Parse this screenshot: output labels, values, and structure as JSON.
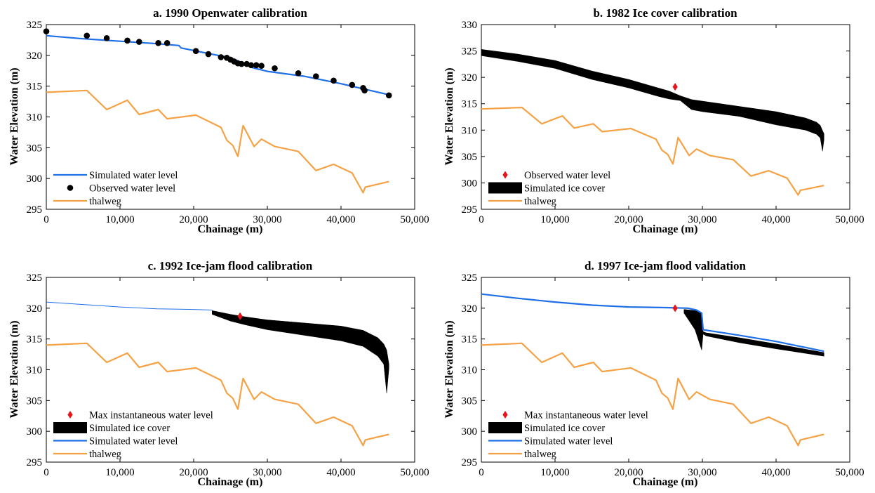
{
  "colors": {
    "simulated_water": "#1f6fe6",
    "thalweg": "#f4a245",
    "observed_point": "#000000",
    "max_point": "#e8141c",
    "ice_cover": "#000000"
  },
  "chart_data": [
    {
      "type": "line",
      "title": "a. 1990 Openwater calibration",
      "xlabel": "Chainage (m)",
      "ylabel": "Water Elevation (m)",
      "xlim": [
        0,
        50000
      ],
      "ylim": [
        295,
        325
      ],
      "x_ticks": [
        0,
        10000,
        20000,
        30000,
        40000,
        50000
      ],
      "x_tick_labels": [
        "0",
        "10,000",
        "20,000",
        "30,000",
        "40,000",
        "50,000"
      ],
      "y_ticks": [
        295,
        300,
        305,
        310,
        315,
        320,
        325
      ],
      "y_tick_labels": [
        "295",
        "300",
        "305",
        "310",
        "315",
        "320",
        "325"
      ],
      "legend_position": "bottom-left",
      "legend": [
        {
          "label": "Simulated water level",
          "kind": "line",
          "series": "water"
        },
        {
          "label": "Observed water level",
          "kind": "dot",
          "series": "observed"
        },
        {
          "label": "thalweg",
          "kind": "line",
          "series": "thalweg"
        }
      ],
      "series": [
        {
          "name": "Simulated water level",
          "kind": "line",
          "color_key": "simulated_water",
          "x": [
            0,
            5000,
            10000,
            15000,
            18000,
            18300,
            22000,
            25000,
            26000,
            27000,
            28000,
            30000,
            35000,
            40000,
            46500
          ],
          "y": [
            323.2,
            322.7,
            322.3,
            321.9,
            321.6,
            321.2,
            320.3,
            319.6,
            319.1,
            318.6,
            318.0,
            317.4,
            316.6,
            315.4,
            313.6
          ]
        },
        {
          "name": "Observed water level",
          "kind": "scatter",
          "color_key": "observed_point",
          "x": [
            0,
            5500,
            8200,
            11000,
            12600,
            15200,
            16400,
            20300,
            22000,
            23700,
            24500,
            25000,
            25500,
            26000,
            26500,
            27200,
            27800,
            28500,
            29200,
            31000,
            34200,
            36600,
            39000,
            41500,
            43000,
            43200,
            46500
          ],
          "y": [
            323.9,
            323.2,
            322.8,
            322.4,
            322.2,
            322.0,
            322.0,
            320.7,
            320.2,
            319.7,
            319.6,
            319.3,
            319.0,
            318.7,
            318.6,
            318.6,
            318.4,
            318.4,
            318.3,
            317.9,
            317.1,
            316.6,
            315.9,
            315.2,
            314.7,
            314.3,
            313.5
          ]
        },
        {
          "name": "thalweg",
          "kind": "line",
          "color_key": "thalweg",
          "x": [
            0,
            5500,
            8200,
            11000,
            12600,
            15200,
            16400,
            20300,
            23700,
            24500,
            25300,
            26000,
            26700,
            28200,
            29200,
            31000,
            34200,
            36600,
            39000,
            41500,
            43000,
            43300,
            46500
          ],
          "y": [
            314.0,
            314.3,
            311.2,
            312.7,
            310.4,
            311.2,
            309.7,
            310.3,
            308.3,
            306.2,
            305.4,
            303.6,
            308.6,
            305.2,
            306.4,
            305.2,
            304.4,
            301.3,
            302.3,
            300.9,
            297.7,
            298.6,
            299.5
          ]
        }
      ]
    },
    {
      "type": "area",
      "title": "b. 1982 Ice cover calibration",
      "xlabel": "Chainage (m)",
      "ylabel": "Water Elevation (m)",
      "xlim": [
        0,
        50000
      ],
      "ylim": [
        295,
        330
      ],
      "x_ticks": [
        0,
        10000,
        20000,
        30000,
        40000,
        50000
      ],
      "x_tick_labels": [
        "0",
        "10,000",
        "20,000",
        "30,000",
        "40,000",
        "50,000"
      ],
      "y_ticks": [
        295,
        300,
        305,
        310,
        315,
        320,
        325,
        330
      ],
      "y_tick_labels": [
        "295",
        "300",
        "305",
        "310",
        "315",
        "320",
        "325",
        "330"
      ],
      "legend_position": "bottom-left",
      "legend": [
        {
          "label": "Observed water level",
          "kind": "diamond",
          "series": "max"
        },
        {
          "label": "Simulated ice cover",
          "kind": "block",
          "series": "ice"
        },
        {
          "label": "thalweg",
          "kind": "line",
          "series": "thalweg"
        }
      ],
      "series": [
        {
          "name": "Observed water level",
          "kind": "point",
          "color_key": "max_point",
          "x": [
            26300
          ],
          "y": [
            318.2
          ]
        },
        {
          "name": "Simulated ice cover",
          "kind": "band",
          "color_key": "ice_cover",
          "x": [
            0,
            5000,
            10000,
            15000,
            20000,
            24000,
            25500,
            27000,
            28500,
            30000,
            35000,
            40000,
            44000,
            45500,
            46000,
            46300,
            46500
          ],
          "upper": [
            325.3,
            324.4,
            323.2,
            321.2,
            319.6,
            318.0,
            317.4,
            316.5,
            315.8,
            315.5,
            314.5,
            313.5,
            312.3,
            311.5,
            310.9,
            309.9,
            309.3
          ],
          "lower": [
            324.1,
            323.0,
            321.7,
            319.6,
            318.0,
            316.4,
            315.9,
            315.6,
            313.9,
            313.5,
            312.6,
            311.0,
            310.0,
            309.2,
            308.5,
            306.0,
            308.2
          ]
        },
        {
          "name": "thalweg",
          "kind": "line",
          "color_key": "thalweg",
          "x": [
            0,
            5500,
            8200,
            11000,
            12600,
            15200,
            16400,
            20300,
            23700,
            24500,
            25300,
            26000,
            26700,
            28200,
            29200,
            31000,
            34200,
            36600,
            39000,
            41500,
            43000,
            43300,
            46500
          ],
          "y": [
            314.0,
            314.3,
            311.2,
            312.7,
            310.4,
            311.2,
            309.7,
            310.3,
            308.3,
            306.2,
            305.4,
            303.6,
            308.6,
            305.2,
            306.4,
            305.2,
            304.4,
            301.3,
            302.3,
            300.9,
            297.7,
            298.6,
            299.5
          ]
        }
      ]
    },
    {
      "type": "area",
      "title": "c. 1992 Ice-jam flood calibration",
      "xlabel": "Chainage (m)",
      "ylabel": "Water Elevation (m)",
      "xlim": [
        0,
        50000
      ],
      "ylim": [
        295,
        325
      ],
      "x_ticks": [
        0,
        10000,
        20000,
        30000,
        40000,
        50000
      ],
      "x_tick_labels": [
        "0",
        "10,000",
        "20,000",
        "30,000",
        "40,000",
        "50,000"
      ],
      "y_ticks": [
        295,
        300,
        305,
        310,
        315,
        320,
        325
      ],
      "y_tick_labels": [
        "295",
        "300",
        "305",
        "310",
        "315",
        "320",
        "325"
      ],
      "legend_position": "bottom-left",
      "legend": [
        {
          "label": "Max instantaneous water level",
          "kind": "diamond",
          "series": "max"
        },
        {
          "label": "Simulated ice cover",
          "kind": "block",
          "series": "ice"
        },
        {
          "label": "Simulated water level",
          "kind": "line",
          "series": "water"
        },
        {
          "label": "thalweg",
          "kind": "line",
          "series": "thalweg"
        }
      ],
      "series": [
        {
          "name": "Simulated water level",
          "kind": "line",
          "thin": true,
          "color_key": "simulated_water",
          "x": [
            0,
            5000,
            10000,
            15000,
            20000,
            22500
          ],
          "y": [
            321.0,
            320.6,
            320.2,
            319.9,
            319.8,
            319.7
          ]
        },
        {
          "name": "Simulated ice cover",
          "kind": "band",
          "color_key": "ice_cover",
          "x": [
            22500,
            25000,
            27000,
            30000,
            35000,
            40000,
            43000,
            45000,
            45800,
            46200,
            46500
          ],
          "upper": [
            319.6,
            319.0,
            318.6,
            318.1,
            317.6,
            317.1,
            316.4,
            315.2,
            314.2,
            313.2,
            310.9
          ],
          "lower": [
            319.0,
            317.9,
            317.3,
            316.5,
            315.6,
            314.7,
            313.8,
            312.2,
            310.9,
            306.2,
            310.2
          ]
        },
        {
          "name": "Max instantaneous water level",
          "kind": "point",
          "color_key": "max_point",
          "x": [
            26300
          ],
          "y": [
            318.7
          ]
        },
        {
          "name": "thalweg",
          "kind": "line",
          "color_key": "thalweg",
          "x": [
            0,
            5500,
            8200,
            11000,
            12600,
            15200,
            16400,
            20300,
            23700,
            24500,
            25300,
            26000,
            26700,
            28200,
            29200,
            31000,
            34200,
            36600,
            39000,
            41500,
            43000,
            43300,
            46500
          ],
          "y": [
            314.0,
            314.3,
            311.2,
            312.7,
            310.4,
            311.2,
            309.7,
            310.3,
            308.3,
            306.2,
            305.4,
            303.6,
            308.6,
            305.2,
            306.4,
            305.2,
            304.4,
            301.3,
            302.3,
            300.9,
            297.7,
            298.6,
            299.5
          ]
        }
      ]
    },
    {
      "type": "area",
      "title": "d. 1997 Ice-jam flood validation",
      "xlabel": "Chainage (m)",
      "ylabel": "Water Elevation (m)",
      "xlim": [
        0,
        50000
      ],
      "ylim": [
        295,
        325
      ],
      "x_ticks": [
        0,
        10000,
        20000,
        30000,
        40000,
        50000
      ],
      "x_tick_labels": [
        "0",
        "10,000",
        "20,000",
        "30,000",
        "40,000",
        "50,000"
      ],
      "y_ticks": [
        295,
        300,
        305,
        310,
        315,
        320,
        325
      ],
      "y_tick_labels": [
        "295",
        "300",
        "305",
        "310",
        "315",
        "320",
        "325"
      ],
      "legend_position": "bottom-left",
      "legend": [
        {
          "label": "Max instantaneous water level",
          "kind": "diamond",
          "series": "max"
        },
        {
          "label": "Simulated ice cover",
          "kind": "block",
          "series": "ice"
        },
        {
          "label": "Simulated water level",
          "kind": "line",
          "series": "water"
        },
        {
          "label": "thalweg",
          "kind": "line",
          "series": "thalweg"
        }
      ],
      "series": [
        {
          "name": "Simulated ice cover",
          "kind": "band",
          "color_key": "ice_cover",
          "x": [
            27500,
            29000,
            29900,
            30100,
            30500,
            35000,
            40000,
            46500
          ],
          "upper": [
            319.8,
            319.6,
            319.3,
            316.2,
            316.0,
            315.2,
            314.2,
            312.8
          ],
          "lower": [
            319.2,
            316.5,
            313.2,
            315.8,
            315.5,
            314.4,
            313.4,
            312.2
          ]
        },
        {
          "name": "Simulated water level",
          "kind": "line",
          "color_key": "simulated_water",
          "x": [
            0,
            5000,
            10000,
            15000,
            20000,
            25000,
            28000,
            29200,
            29900,
            30100,
            35000,
            40000,
            46500
          ],
          "y": [
            322.3,
            321.6,
            321.0,
            320.5,
            320.2,
            320.1,
            320.0,
            319.7,
            319.2,
            316.5,
            315.6,
            314.6,
            313.0
          ]
        },
        {
          "name": "Max instantaneous water level",
          "kind": "point",
          "color_key": "max_point",
          "x": [
            26300
          ],
          "y": [
            320.0
          ]
        },
        {
          "name": "thalweg",
          "kind": "line",
          "color_key": "thalweg",
          "x": [
            0,
            5500,
            8200,
            11000,
            12600,
            15200,
            16400,
            20300,
            23700,
            24500,
            25300,
            26000,
            26700,
            28200,
            29200,
            31000,
            34200,
            36600,
            39000,
            41500,
            43000,
            43300,
            46500
          ],
          "y": [
            314.0,
            314.3,
            311.2,
            312.7,
            310.4,
            311.2,
            309.7,
            310.3,
            308.3,
            306.2,
            305.4,
            303.6,
            308.6,
            305.2,
            306.4,
            305.2,
            304.4,
            301.3,
            302.3,
            300.9,
            297.7,
            298.6,
            299.5
          ]
        }
      ]
    }
  ]
}
